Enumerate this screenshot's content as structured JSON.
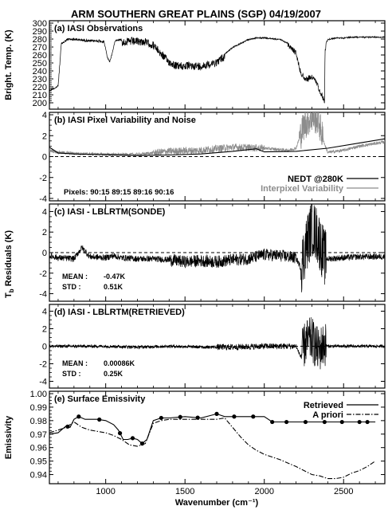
{
  "figure": {
    "title": "ARM SOUTHERN GREAT PLAINS (SGP)  04/19/2007",
    "xlabel": "Wavenumber (cm⁻¹)"
  },
  "chart_data": [
    {
      "type": "line",
      "panel_title": "(a) IASI Observations",
      "ylabel": "Bright. Temp. (K)",
      "xlim": [
        645,
        2760
      ],
      "ylim": [
        195,
        300
      ],
      "yticks": [
        200,
        210,
        220,
        230,
        240,
        250,
        260,
        270,
        280,
        290,
        300
      ],
      "series": [
        {
          "color": "#000000",
          "noisy": true,
          "x": [
            645,
            660,
            680,
            700,
            720,
            760,
            800,
            850,
            900,
            950,
            990,
            1010,
            1025,
            1040,
            1060,
            1100,
            1150,
            1200,
            1250,
            1300,
            1350,
            1400,
            1450,
            1500,
            1550,
            1600,
            1650,
            1700,
            1750,
            1800,
            1850,
            1900,
            1950,
            2000,
            2050,
            2100,
            2150,
            2200,
            2230,
            2260,
            2300,
            2330,
            2350,
            2380,
            2383,
            2390,
            2400,
            2450,
            2500,
            2550,
            2600,
            2650,
            2700,
            2760
          ],
          "y": [
            215,
            218,
            219,
            222,
            275,
            281,
            281,
            280,
            279,
            279,
            278,
            258,
            252,
            262,
            279,
            280,
            281,
            281,
            280,
            276,
            265,
            255,
            250,
            250,
            250,
            250,
            252,
            255,
            262,
            270,
            275,
            280,
            282,
            282,
            281,
            280,
            275,
            265,
            240,
            232,
            235,
            228,
            218,
            205,
            268,
            276,
            280,
            282,
            282,
            283,
            283,
            283,
            283,
            283
          ]
        }
      ]
    },
    {
      "type": "line",
      "panel_title": "(b) IASI Pixel Variability and Noise",
      "xlim": [
        645,
        2760
      ],
      "ylim": [
        -4,
        4
      ],
      "yticks": [
        -4,
        -2,
        0,
        2,
        4
      ],
      "legend": [
        "NEDT @280K",
        "Interpixel Variability"
      ],
      "annotation": "Pixels:  90:15  89:15  89:16  90:16",
      "series": [
        {
          "name": "NEDT @280K",
          "color": "#000000",
          "x": [
            645,
            700,
            800,
            1000,
            1200,
            1400,
            1600,
            1800,
            1950,
            2000,
            2200,
            2400,
            2600,
            2760
          ],
          "y": [
            0.9,
            0.35,
            0.25,
            0.18,
            0.1,
            0.15,
            0.25,
            0.5,
            0.75,
            0.45,
            0.5,
            0.8,
            1.3,
            1.7
          ]
        },
        {
          "name": "Interpixel Variability",
          "color": "#8c8c8c",
          "noisy": true,
          "x": [
            645,
            700,
            800,
            1000,
            1200,
            1400,
            1600,
            1800,
            2000,
            2150,
            2200,
            2250,
            2300,
            2340,
            2380,
            2400,
            2500,
            2600,
            2760
          ],
          "y": [
            0.6,
            0.4,
            0.3,
            0.2,
            0.2,
            0.5,
            0.6,
            0.9,
            0.8,
            0.6,
            0.8,
            3.0,
            3.8,
            3.5,
            1.2,
            0.4,
            0.6,
            1.0,
            1.4
          ]
        }
      ]
    },
    {
      "type": "line",
      "panel_title": "(c)  IASI - LBLRTM(SONDE)",
      "ylabel": "T_b Residuals (K)",
      "xlim": [
        645,
        2760
      ],
      "ylim": [
        -4.5,
        4.5
      ],
      "yticks": [
        -4,
        -2,
        0,
        2,
        4
      ],
      "stats": {
        "mean_label": "MEAN :",
        "mean_value": "-0.47K",
        "std_label": "STD   :",
        "std_value": "0.51K"
      },
      "series": [
        {
          "color": "#000000",
          "noisy": true,
          "x": [
            645,
            700,
            800,
            850,
            900,
            1000,
            1050,
            1100,
            1200,
            1300,
            1400,
            1500,
            1600,
            1700,
            1800,
            1900,
            2000,
            2100,
            2200,
            2230,
            2260,
            2300,
            2340,
            2380,
            2400,
            2500,
            2600,
            2760
          ],
          "y": [
            -0.3,
            -0.5,
            -0.6,
            0.5,
            -0.4,
            -0.5,
            -0.3,
            -0.5,
            -0.6,
            -0.6,
            -0.7,
            -0.9,
            -0.8,
            -0.9,
            -0.7,
            -0.6,
            -0.2,
            -0.3,
            -0.5,
            -1.5,
            0.5,
            2.5,
            1.5,
            -0.5,
            -0.6,
            -0.5,
            -0.4,
            -0.4
          ]
        }
      ]
    },
    {
      "type": "line",
      "panel_title": "(d)  IASI - LBLRTM(RETRIEVED)",
      "xlim": [
        645,
        2760
      ],
      "ylim": [
        -4.5,
        4.5
      ],
      "yticks": [
        -4,
        -2,
        0,
        2,
        4
      ],
      "stats": {
        "mean_label": "MEAN :",
        "mean_value": "0.00086K",
        "std_label": "STD   :",
        "std_value": "0.25K"
      },
      "series": [
        {
          "color": "#000000",
          "noisy": true,
          "x": [
            645,
            800,
            1000,
            1200,
            1400,
            1600,
            1800,
            2000,
            2200,
            2230,
            2260,
            2300,
            2340,
            2380,
            2400,
            2600,
            2760
          ],
          "y": [
            0,
            0,
            0,
            -0.1,
            0,
            -0.1,
            -0.1,
            0,
            0,
            -1.2,
            0.5,
            0.8,
            -0.5,
            0.3,
            0,
            0,
            0
          ]
        }
      ]
    },
    {
      "type": "line",
      "panel_title": "(e)  Surface Emissivity",
      "ylabel": "Emissivity",
      "xlim": [
        645,
        2760
      ],
      "ylim": [
        0.935,
        1.0
      ],
      "yticks": [
        0.94,
        0.95,
        0.96,
        0.97,
        0.98,
        0.99,
        1.0
      ],
      "xticks": [
        1000,
        1500,
        2000,
        2500
      ],
      "legend": [
        "Retrieved",
        "A priori"
      ],
      "series": [
        {
          "name": "Retrieved",
          "color": "#000000",
          "style": "solid",
          "x": [
            645,
            700,
            750,
            775,
            800,
            830,
            870,
            900,
            950,
            1000,
            1050,
            1080,
            1110,
            1140,
            1170,
            1200,
            1230,
            1260,
            1300,
            1350,
            1400,
            1500,
            1600,
            1700,
            1750,
            1800,
            1900,
            1950,
            2000,
            2050,
            2100,
            2150,
            2200,
            2250,
            2300,
            2350,
            2400,
            2450,
            2500,
            2550,
            2600,
            2650,
            2700
          ],
          "y": [
            0.97,
            0.971,
            0.976,
            0.975,
            0.981,
            0.983,
            0.981,
            0.981,
            0.981,
            0.98,
            0.977,
            0.973,
            0.966,
            0.966,
            0.967,
            0.966,
            0.963,
            0.966,
            0.98,
            0.982,
            0.982,
            0.983,
            0.982,
            0.985,
            0.983,
            0.983,
            0.983,
            0.983,
            0.983,
            0.979,
            0.979,
            0.979,
            0.979,
            0.979,
            0.979,
            0.979,
            0.979,
            0.979,
            0.979,
            0.979,
            0.979,
            0.979,
            0.979
          ],
          "markers_at_x": [
            760,
            830,
            960,
            1090,
            1170,
            1230,
            1350,
            1470,
            1580,
            1700,
            1810,
            1930,
            2050,
            2140,
            2260,
            2380,
            2490,
            2600,
            2650
          ]
        },
        {
          "name": "A priori",
          "color": "#000000",
          "style": "dashdot",
          "x": [
            645,
            700,
            750,
            800,
            850,
            900,
            950,
            1000,
            1050,
            1100,
            1150,
            1200,
            1250,
            1300,
            1350,
            1400,
            1500,
            1600,
            1700,
            1750,
            1800,
            1850,
            1900,
            1950,
            2000,
            2100,
            2200,
            2300,
            2350,
            2400,
            2450,
            2500,
            2550,
            2600,
            2650,
            2700
          ],
          "y": [
            0.971,
            0.973,
            0.975,
            0.979,
            0.975,
            0.973,
            0.972,
            0.971,
            0.969,
            0.966,
            0.962,
            0.961,
            0.963,
            0.978,
            0.98,
            0.981,
            0.981,
            0.981,
            0.981,
            0.982,
            0.975,
            0.968,
            0.962,
            0.958,
            0.955,
            0.951,
            0.946,
            0.94,
            0.939,
            0.937,
            0.937,
            0.938,
            0.941,
            0.943,
            0.946,
            0.95
          ]
        }
      ]
    }
  ]
}
